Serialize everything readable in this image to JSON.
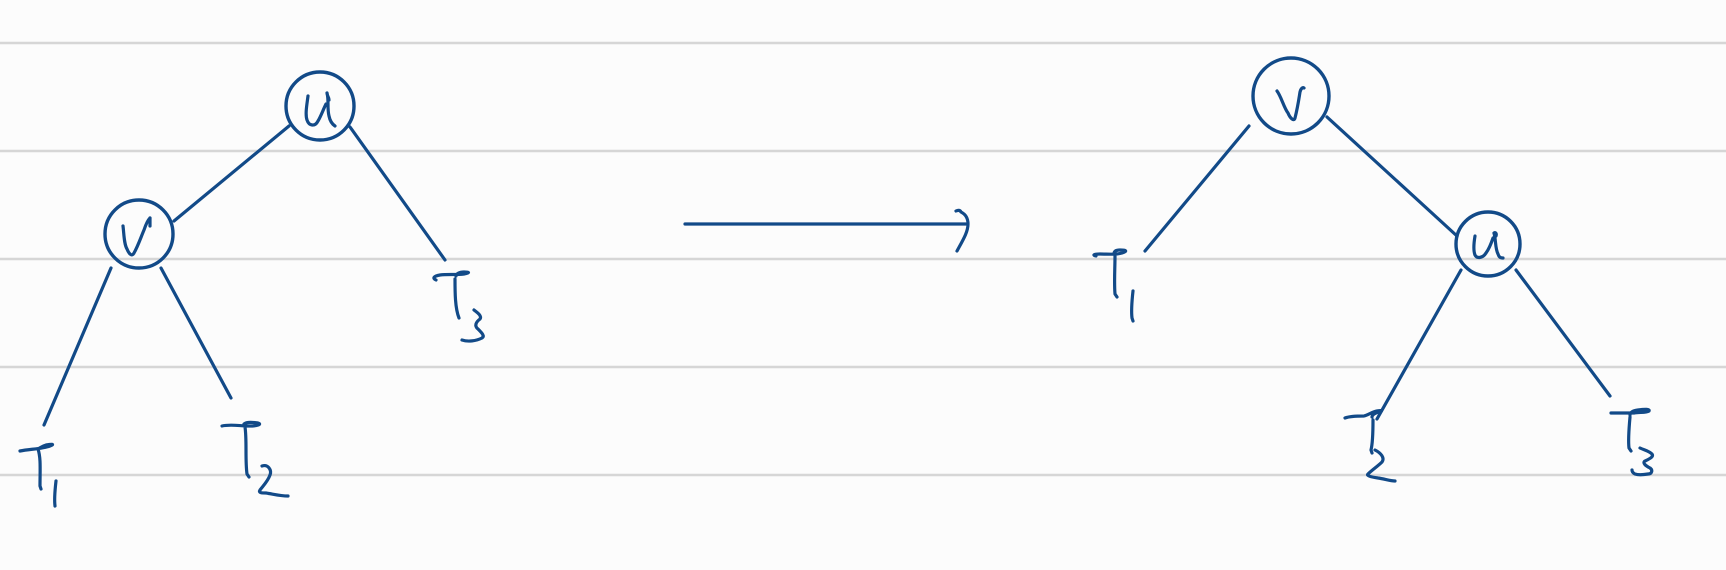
{
  "diagram": {
    "left_tree": {
      "root": "u",
      "left_child": "v",
      "right_subtree": "T3",
      "left_child_subtrees": [
        "T1",
        "T2"
      ]
    },
    "arrow": "rotation",
    "right_tree": {
      "root": "v",
      "left_subtree": "T1",
      "right_child": "u",
      "right_child_subtrees": [
        "T2",
        "T3"
      ]
    }
  },
  "colors": {
    "ink": "#124a88",
    "ruled_lines": "#d6d6d6",
    "paper": "#fcfcfc"
  }
}
